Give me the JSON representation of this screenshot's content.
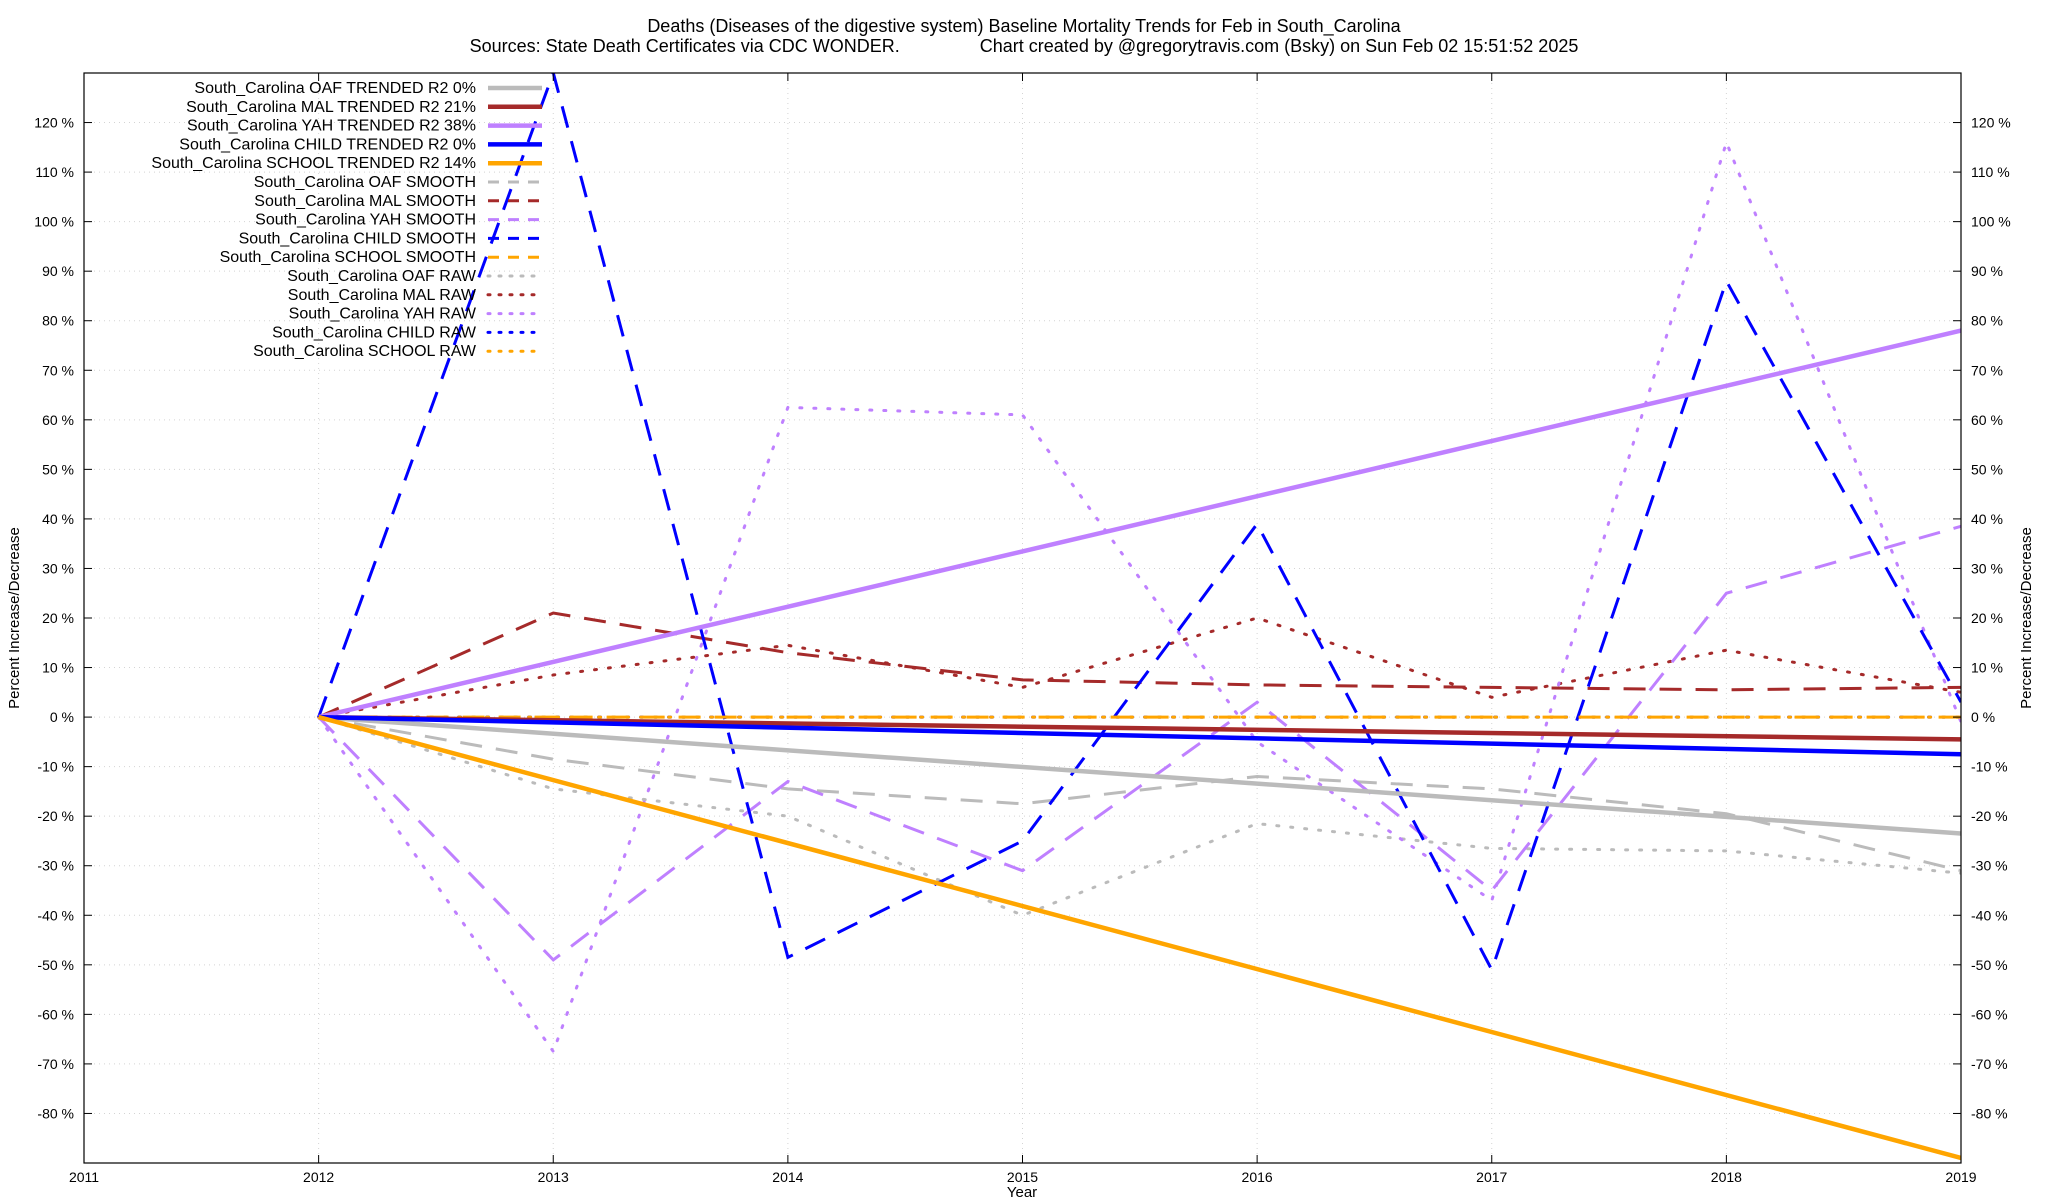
{
  "chart_data": {
    "type": "line",
    "title_line1": "Deaths (Diseases of the digestive system)  Baseline Mortality Trends for Feb in South_Carolina",
    "title_line2": "Sources: State Death Certificates via CDC WONDER.                Chart created by @gregorytravis.com (Bsky) on Sun Feb 02 15:51:52 2025",
    "xlabel": "Year",
    "ylabel": "Percent Increase/Decrease",
    "xlim": [
      2011,
      2019
    ],
    "ylim": [
      -90,
      130
    ],
    "x_ticks": [
      2011,
      2012,
      2013,
      2014,
      2015,
      2016,
      2017,
      2018,
      2019
    ],
    "y_ticks": [
      -80,
      -70,
      -60,
      -50,
      -40,
      -30,
      -20,
      -10,
      0,
      10,
      20,
      30,
      40,
      50,
      60,
      70,
      80,
      90,
      100,
      110,
      120
    ],
    "y_tick_suffix": " %",
    "grid": true,
    "legend_position": "top-left",
    "colors": {
      "OAF": "#bbbbbb",
      "MAL": "#a52a2a",
      "YAH": "#bf80ff",
      "CHILD": "#0000ff",
      "SCHOOL": "#ffa500"
    },
    "series": [
      {
        "name": "South_Carolina OAF TRENDED R2  0%",
        "group": "OAF",
        "style": "trend",
        "x": [
          2012,
          2019
        ],
        "y": [
          0,
          -23.5
        ]
      },
      {
        "name": "South_Carolina MAL TRENDED R2  21%",
        "group": "MAL",
        "style": "trend",
        "x": [
          2012,
          2019
        ],
        "y": [
          0,
          -4.5
        ]
      },
      {
        "name": "South_Carolina YAH TRENDED R2  38%",
        "group": "YAH",
        "style": "trend",
        "x": [
          2012,
          2019
        ],
        "y": [
          0,
          78
        ]
      },
      {
        "name": "South_Carolina CHILD TRENDED R2  0%",
        "group": "CHILD",
        "style": "trend",
        "x": [
          2012,
          2019
        ],
        "y": [
          0,
          -7.5
        ]
      },
      {
        "name": "South_Carolina SCHOOL TRENDED R2  14%",
        "group": "SCHOOL",
        "style": "trend",
        "x": [
          2012,
          2019
        ],
        "y": [
          0,
          -89
        ]
      },
      {
        "name": "South_Carolina OAF SMOOTH",
        "group": "OAF",
        "style": "smooth",
        "x": [
          2012,
          2013,
          2014,
          2015,
          2016,
          2017,
          2018,
          2019
        ],
        "y": [
          0,
          -8.5,
          -14.5,
          -17.5,
          -12,
          -14.5,
          -19.5,
          -31
        ]
      },
      {
        "name": "South_Carolina MAL SMOOTH",
        "group": "MAL",
        "style": "smooth",
        "x": [
          2012,
          2013,
          2014,
          2015,
          2016,
          2017,
          2018,
          2019
        ],
        "y": [
          0,
          21,
          13,
          7.5,
          6.5,
          6,
          5.5,
          6
        ]
      },
      {
        "name": "South_Carolina YAH SMOOTH",
        "group": "YAH",
        "style": "smooth",
        "x": [
          2012,
          2013,
          2014,
          2015,
          2016,
          2017,
          2018,
          2019
        ],
        "y": [
          0,
          -49,
          -13,
          -31,
          3,
          -35,
          25,
          38.5
        ]
      },
      {
        "name": "South_Carolina CHILD SMOOTH",
        "group": "CHILD",
        "style": "smooth",
        "x": [
          2012,
          2013,
          2014,
          2015,
          2016,
          2017,
          2018,
          2019
        ],
        "y": [
          0,
          130,
          -48.5,
          -25,
          39,
          -51,
          88,
          3
        ]
      },
      {
        "name": "South_Carolina SCHOOL SMOOTH",
        "group": "SCHOOL",
        "style": "smooth",
        "x": [
          2012,
          2013,
          2014,
          2015,
          2016,
          2017,
          2018,
          2019
        ],
        "y": [
          0,
          0,
          0,
          0,
          0,
          0,
          0,
          0
        ]
      },
      {
        "name": "South_Carolina OAF RAW",
        "group": "OAF",
        "style": "raw",
        "x": [
          2012,
          2013,
          2014,
          2015,
          2016,
          2017,
          2018,
          2019
        ],
        "y": [
          0,
          -14.5,
          -20,
          -40,
          -21.5,
          -26.5,
          -27,
          -31.5
        ]
      },
      {
        "name": "South_Carolina MAL RAW",
        "group": "MAL",
        "style": "raw",
        "x": [
          2012,
          2013,
          2014,
          2015,
          2016,
          2017,
          2018,
          2019
        ],
        "y": [
          0,
          8.5,
          14.5,
          6,
          20,
          4,
          13.5,
          5
        ]
      },
      {
        "name": "South_Carolina YAH RAW",
        "group": "YAH",
        "style": "raw",
        "x": [
          2012,
          2013,
          2014,
          2015,
          2016,
          2017,
          2018,
          2019
        ],
        "y": [
          0,
          -67.5,
          62.5,
          61,
          -5,
          -37,
          116,
          -1
        ]
      },
      {
        "name": "South_Carolina CHILD RAW",
        "group": "CHILD",
        "style": "raw",
        "x": [
          2012,
          2013,
          2014,
          2015,
          2016,
          2017,
          2018,
          2019
        ],
        "y": [
          0,
          0,
          0,
          0,
          0,
          0,
          0,
          0
        ]
      },
      {
        "name": "South_Carolina SCHOOL RAW",
        "group": "SCHOOL",
        "style": "raw",
        "x": [
          2012,
          2013,
          2014,
          2015,
          2016,
          2017,
          2018,
          2019
        ],
        "y": [
          0,
          0,
          0,
          0,
          0,
          0,
          0,
          0
        ]
      }
    ]
  }
}
